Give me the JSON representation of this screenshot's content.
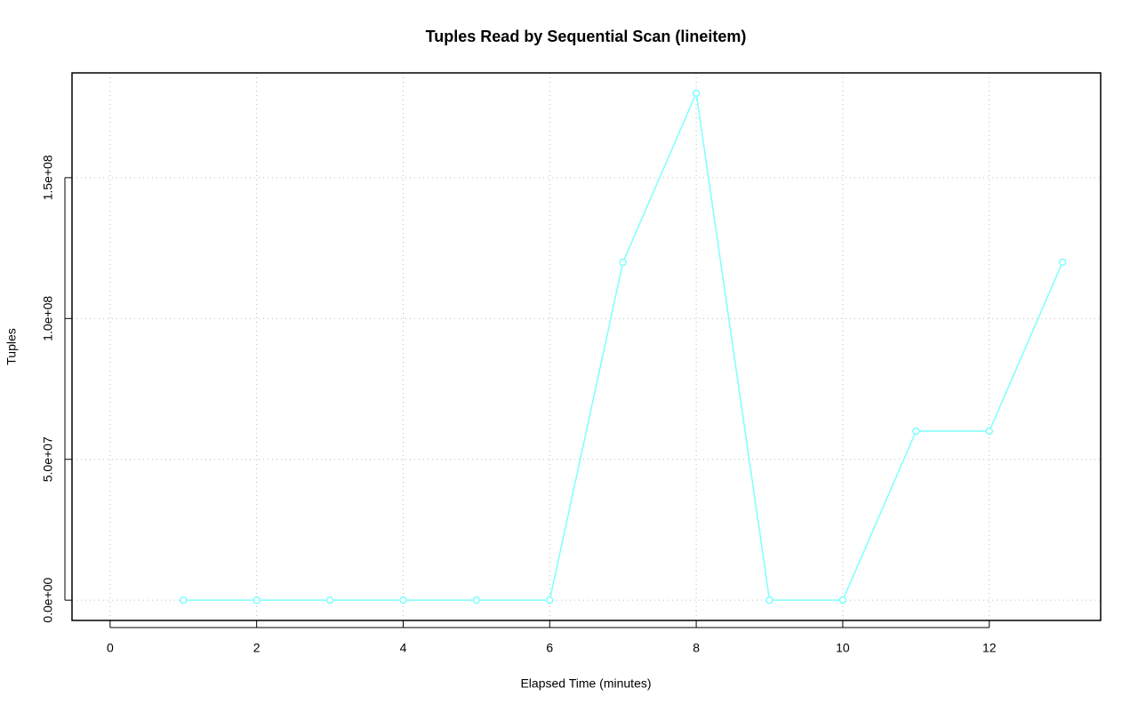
{
  "chart_data": {
    "type": "line",
    "title": "Tuples Read by Sequential Scan (lineitem)",
    "x_label": "Elapsed Time (minutes)",
    "y_label": "Tuples",
    "x": [
      1,
      2,
      3,
      4,
      5,
      6,
      7,
      8,
      9,
      10,
      11,
      12,
      13
    ],
    "series": [
      {
        "name": "lineitem",
        "color": "#7fffff",
        "values": [
          0,
          0,
          0,
          0,
          0,
          0,
          120000000,
          180000000,
          0,
          0,
          60000000,
          60000000,
          120000000
        ]
      }
    ],
    "xlim": [
      -0.52,
      13.52
    ],
    "xticks": [
      0,
      2,
      4,
      6,
      8,
      10,
      12
    ],
    "ylim": [
      -7200000,
      187200000
    ],
    "yticks": [
      {
        "value": 0,
        "label": "0.0e+00"
      },
      {
        "value": 50000000,
        "label": "5.0e+07"
      },
      {
        "value": 100000000,
        "label": "1.0e+08"
      },
      {
        "value": 150000000,
        "label": "1.5e+08"
      }
    ],
    "grid": true
  }
}
